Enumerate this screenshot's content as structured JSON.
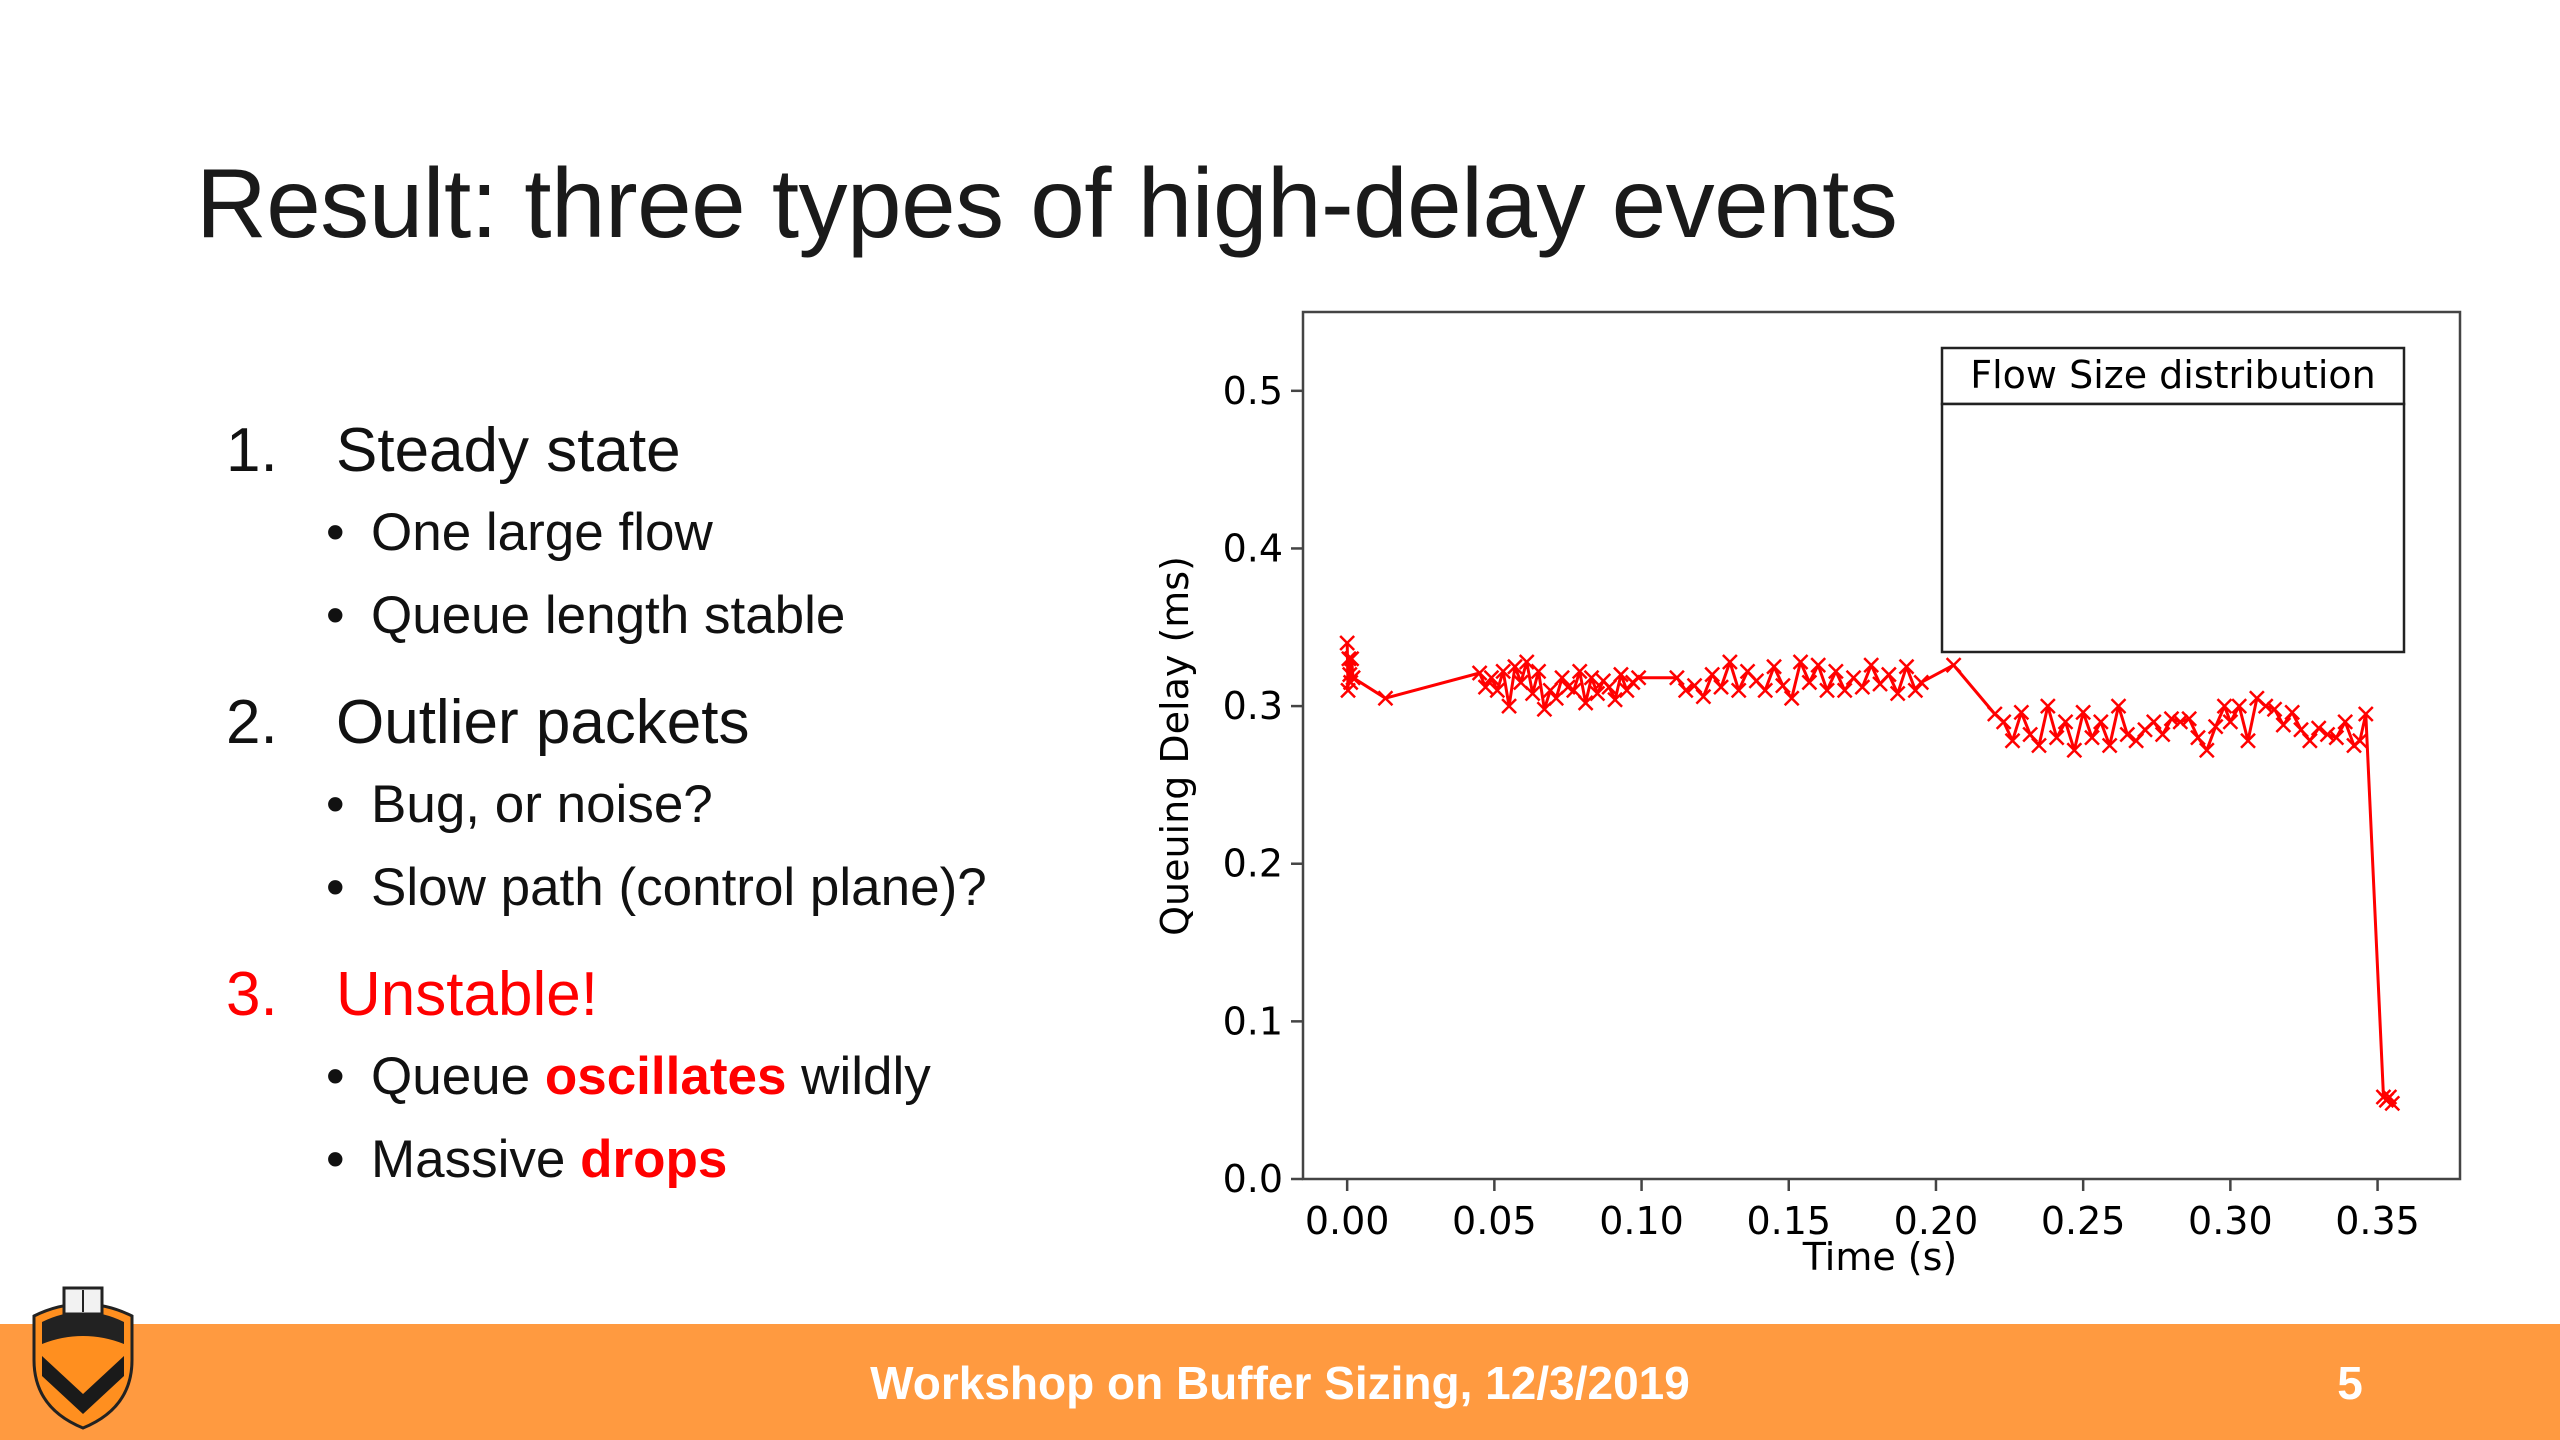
{
  "slide": {
    "title": "Result: three types of high-delay events",
    "footer": "Workshop on Buffer Sizing, 12/3/2019",
    "page_number": "5"
  },
  "bullets": [
    {
      "num": "1.",
      "text": "Steady state",
      "sub": [
        "One large flow",
        "Queue length stable"
      ]
    },
    {
      "num": "2.",
      "text": "Outlier packets",
      "sub": [
        "Bug, or noise?",
        "Slow path (control plane)?"
      ]
    },
    {
      "num": "3.",
      "text": "Unstable!",
      "sub_rich": [
        {
          "pre": "Queue ",
          "hl": "oscillates",
          "post": " wildly"
        },
        {
          "pre": "Massive ",
          "hl": "drops",
          "post": ""
        }
      ]
    }
  ],
  "colors": {
    "accent_red": "#ff0000",
    "footer_orange": "#ff9a40",
    "line_red": "#ff0000"
  },
  "chart_data": {
    "type": "line",
    "xlabel": "Time (s)",
    "ylabel": "Queuing Delay (ms)",
    "xlim": [
      -0.015,
      0.378
    ],
    "ylim": [
      0.0,
      0.55
    ],
    "xticks": [
      0.0,
      0.05,
      0.1,
      0.15,
      0.2,
      0.25,
      0.3,
      0.35
    ],
    "xtick_labels": [
      "0.00",
      "0.05",
      "0.10",
      "0.15",
      "0.20",
      "0.25",
      "0.30",
      "0.35"
    ],
    "yticks": [
      0.0,
      0.1,
      0.2,
      0.3,
      0.4,
      0.5
    ],
    "ytick_labels": [
      "0.0",
      "0.1",
      "0.2",
      "0.3",
      "0.4",
      "0.5"
    ],
    "grid": false,
    "legend_title": "Flow Size distribution",
    "legend_position": "top-right",
    "marker": "x",
    "series": [
      {
        "x": [
          0.0,
          0.0003,
          0.0006,
          0.0009,
          0.0012,
          0.0015,
          0.002,
          0.013,
          0.045,
          0.047,
          0.049,
          0.051,
          0.053,
          0.055,
          0.057,
          0.059,
          0.061,
          0.063,
          0.065,
          0.067,
          0.069,
          0.071,
          0.073,
          0.075,
          0.077,
          0.079,
          0.081,
          0.083,
          0.085,
          0.087,
          0.089,
          0.091,
          0.093,
          0.095,
          0.097,
          0.099,
          0.112,
          0.115,
          0.118,
          0.121,
          0.124,
          0.127,
          0.13,
          0.133,
          0.136,
          0.139,
          0.142,
          0.145,
          0.148,
          0.151,
          0.154,
          0.157,
          0.16,
          0.163,
          0.166,
          0.169,
          0.172,
          0.175,
          0.178,
          0.181,
          0.184,
          0.187,
          0.19,
          0.193,
          0.195,
          0.206,
          0.22,
          0.223,
          0.226,
          0.229,
          0.232,
          0.235,
          0.238,
          0.241,
          0.244,
          0.247,
          0.25,
          0.253,
          0.256,
          0.259,
          0.262,
          0.265,
          0.268,
          0.271,
          0.274,
          0.277,
          0.28,
          0.283,
          0.286,
          0.289,
          0.292,
          0.295,
          0.298,
          0.3,
          0.303,
          0.306,
          0.309,
          0.312,
          0.315,
          0.318,
          0.321,
          0.324,
          0.327,
          0.33,
          0.333,
          0.336,
          0.339,
          0.342,
          0.344,
          0.346,
          0.352,
          0.353,
          0.354,
          0.355
        ],
        "y": [
          0.34,
          0.31,
          0.33,
          0.32,
          0.315,
          0.33,
          0.318,
          0.305,
          0.321,
          0.312,
          0.318,
          0.31,
          0.322,
          0.3,
          0.325,
          0.315,
          0.328,
          0.308,
          0.322,
          0.298,
          0.31,
          0.305,
          0.318,
          0.312,
          0.31,
          0.322,
          0.302,
          0.318,
          0.308,
          0.316,
          0.312,
          0.304,
          0.32,
          0.31,
          0.315,
          0.318,
          0.318,
          0.31,
          0.313,
          0.306,
          0.32,
          0.312,
          0.328,
          0.31,
          0.322,
          0.316,
          0.31,
          0.325,
          0.313,
          0.305,
          0.328,
          0.315,
          0.326,
          0.31,
          0.322,
          0.31,
          0.318,
          0.312,
          0.326,
          0.314,
          0.32,
          0.308,
          0.325,
          0.31,
          0.315,
          0.326,
          0.295,
          0.29,
          0.278,
          0.296,
          0.282,
          0.275,
          0.3,
          0.28,
          0.29,
          0.272,
          0.296,
          0.28,
          0.29,
          0.275,
          0.3,
          0.282,
          0.278,
          0.285,
          0.29,
          0.282,
          0.292,
          0.29,
          0.292,
          0.28,
          0.272,
          0.287,
          0.3,
          0.29,
          0.3,
          0.278,
          0.305,
          0.3,
          0.298,
          0.288,
          0.296,
          0.285,
          0.278,
          0.286,
          0.282,
          0.28,
          0.29,
          0.275,
          0.278,
          0.295,
          0.052,
          0.05,
          0.052,
          0.048
        ]
      }
    ]
  }
}
